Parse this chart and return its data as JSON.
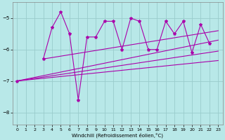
{
  "xlabel": "Windchill (Refroidissement éolien,°C)",
  "bg_color": "#b8e8e8",
  "line_color": "#aa00aa",
  "grid_color": "#99cccc",
  "xlim": [
    -0.5,
    23.5
  ],
  "ylim": [
    -8.4,
    -4.5
  ],
  "yticks": [
    -8,
    -7,
    -6,
    -5
  ],
  "xticks": [
    0,
    1,
    2,
    3,
    4,
    5,
    6,
    7,
    8,
    9,
    10,
    11,
    12,
    13,
    14,
    15,
    16,
    17,
    18,
    19,
    20,
    21,
    22,
    23
  ],
  "series1_x": [
    3,
    4,
    5,
    6,
    7,
    8,
    9,
    10,
    11,
    12,
    13,
    14,
    15,
    16,
    17,
    18,
    19,
    20,
    21,
    22
  ],
  "series1_y": [
    -6.3,
    -5.3,
    -4.8,
    -5.5,
    -7.6,
    -5.6,
    -5.6,
    -5.1,
    -5.1,
    -6.0,
    -5.0,
    -5.1,
    -6.0,
    -6.0,
    -5.1,
    -5.5,
    -5.1,
    -6.1,
    -5.2,
    -5.8
  ],
  "trend_lines": [
    {
      "x": [
        0,
        23
      ],
      "y": [
        -7.0,
        -6.35
      ]
    },
    {
      "x": [
        0,
        23
      ],
      "y": [
        -7.0,
        -6.05
      ]
    },
    {
      "x": [
        0,
        23
      ],
      "y": [
        -7.0,
        -5.7
      ]
    },
    {
      "x": [
        3,
        23
      ],
      "y": [
        -6.3,
        -5.4
      ]
    }
  ],
  "single_points": [
    {
      "x": [
        0,
        3
      ],
      "y": [
        -7.0,
        -6.3
      ]
    },
    {
      "x": [
        0,
        22
      ],
      "y": [
        -7.0,
        -5.8
      ]
    },
    {
      "x": [
        0,
        22
      ],
      "y": [
        -7.0,
        -6.5
      ]
    }
  ]
}
